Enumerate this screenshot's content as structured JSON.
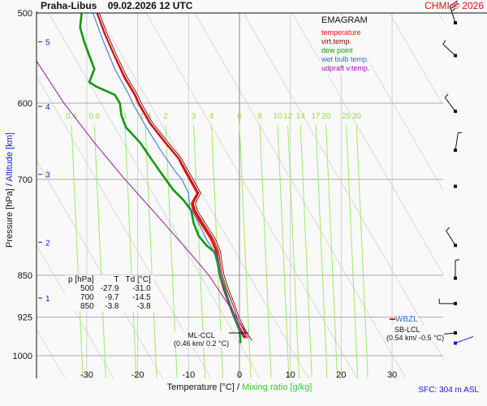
{
  "header": {
    "station": "Praha-Libus",
    "datetime": "09.02.2026 12 UTC",
    "copyright": "CHMI © 2026"
  },
  "legend": {
    "title": "EMAGRAM",
    "items": [
      {
        "label": "temperature",
        "color": "#ee1111"
      },
      {
        "label": "virt.temp.",
        "color": "#8b0000"
      },
      {
        "label": "dew point",
        "color": "#119911"
      },
      {
        "label": "wet bulb temp.",
        "color": "#2a6fdb"
      },
      {
        "label": "udpraft v.temp.",
        "color": "#9911aa"
      }
    ]
  },
  "axes": {
    "y_label_pressure": "Pressure [hPa]",
    "y_label_sep": " / ",
    "y_label_altitude": "Altitude [km]",
    "x_label_temp": "Temperature [°C]",
    "x_label_sep": " / ",
    "x_label_mixing": "Mixing ratio [g/kg]",
    "sfc": "SFC: 304 m ASL"
  },
  "table": {
    "headers": [
      "p [hPa]",
      "T",
      "Td [°C]"
    ],
    "rows": [
      [
        "500",
        "-27.9",
        "-31.0"
      ],
      [
        "700",
        "-9.7",
        "-14.5"
      ],
      [
        "850",
        "-3.8",
        "-3.8"
      ]
    ]
  },
  "annotations": {
    "ml_ccl_label": "ML-CCL",
    "ml_ccl_value": "(0.46 km/ 0.2 °C)",
    "wbzl_label": "WBZL",
    "sb_lcl_label": "SB-LCL",
    "sb_lcl_value": "(0.54 km/ -0.5 °C)"
  },
  "chart_data": {
    "type": "line",
    "title": "Praha-Libus 09.02.2026 12 UTC",
    "chart_kind": "emagram",
    "xlabel": "Temperature [°C] / Mixing ratio [g/kg]",
    "ylabel": "Pressure [hPa] / Altitude [km]",
    "xlim": [
      -40,
      40
    ],
    "ylim": [
      1000,
      500
    ],
    "y_scale": "log",
    "x_ticks": [
      -30,
      -20,
      -10,
      0,
      10,
      20,
      30
    ],
    "y_ticks": [
      500,
      600,
      700,
      850,
      925,
      1000
    ],
    "altitude_ticks": [
      {
        "km": 1,
        "p": 890
      },
      {
        "km": 2,
        "p": 795
      },
      {
        "km": 3,
        "p": 693
      },
      {
        "km": 4,
        "p": 604
      },
      {
        "km": 5,
        "p": 530
      }
    ],
    "mixing_ratio_labels": [
      "0.4",
      "0.6",
      "1",
      "1.4",
      "2",
      "3",
      "4",
      "6",
      "8",
      "10",
      "12",
      "14",
      "17",
      "20",
      "25",
      "30"
    ],
    "mixing_ratio_label_temps_600": [
      -33,
      -28.5,
      -22.5,
      -18.5,
      -14.5,
      -9,
      -5.5,
      0,
      4,
      7.5,
      9.5,
      12,
      15,
      17,
      21,
      23
    ],
    "grid": true,
    "legend_position": "top-right",
    "series": [
      {
        "name": "temperature",
        "color": "#ee1111",
        "points": [
          [
            500,
            -27.9
          ],
          [
            520,
            -26.5
          ],
          [
            545,
            -24.5
          ],
          [
            570,
            -22.5
          ],
          [
            590,
            -20.5
          ],
          [
            600,
            -19.8
          ],
          [
            625,
            -17.5
          ],
          [
            650,
            -14.5
          ],
          [
            670,
            -12
          ],
          [
            690,
            -10.5
          ],
          [
            700,
            -9.7
          ],
          [
            720,
            -8.2
          ],
          [
            735,
            -9.3
          ],
          [
            745,
            -9
          ],
          [
            765,
            -7.5
          ],
          [
            790,
            -5.5
          ],
          [
            810,
            -4.5
          ],
          [
            830,
            -4.2
          ],
          [
            850,
            -3.8
          ],
          [
            875,
            -3
          ],
          [
            900,
            -2
          ],
          [
            925,
            -1
          ],
          [
            950,
            0.2
          ],
          [
            965,
            1.2
          ]
        ]
      },
      {
        "name": "virt.temp.",
        "color": "#8b0000",
        "points": [
          [
            500,
            -27.7
          ],
          [
            520,
            -26.3
          ],
          [
            545,
            -24.3
          ],
          [
            570,
            -22.2
          ],
          [
            590,
            -20.2
          ],
          [
            600,
            -19.5
          ],
          [
            625,
            -17.2
          ],
          [
            650,
            -14.2
          ],
          [
            670,
            -11.7
          ],
          [
            690,
            -10.1
          ],
          [
            700,
            -9.3
          ],
          [
            720,
            -7.8
          ],
          [
            735,
            -8.9
          ],
          [
            745,
            -8.5
          ],
          [
            765,
            -6.9
          ],
          [
            790,
            -4.9
          ],
          [
            810,
            -3.9
          ],
          [
            830,
            -3.6
          ],
          [
            850,
            -3.2
          ],
          [
            875,
            -2.3
          ],
          [
            900,
            -1.2
          ],
          [
            925,
            -0.3
          ],
          [
            950,
            1
          ],
          [
            965,
            1.8
          ]
        ]
      },
      {
        "name": "dew point",
        "color": "#119911",
        "points": [
          [
            500,
            -31
          ],
          [
            515,
            -31.3
          ],
          [
            530,
            -30.5
          ],
          [
            545,
            -29.5
          ],
          [
            560,
            -28.5
          ],
          [
            575,
            -29.5
          ],
          [
            580,
            -28.2
          ],
          [
            590,
            -24.5
          ],
          [
            600,
            -23.5
          ],
          [
            615,
            -23.2
          ],
          [
            630,
            -22.3
          ],
          [
            650,
            -19.5
          ],
          [
            670,
            -17.5
          ],
          [
            690,
            -15.5
          ],
          [
            700,
            -14.5
          ],
          [
            715,
            -13
          ],
          [
            730,
            -11
          ],
          [
            745,
            -9.5
          ],
          [
            765,
            -9
          ],
          [
            785,
            -8
          ],
          [
            800,
            -6.5
          ],
          [
            810,
            -5
          ],
          [
            820,
            -4.5
          ],
          [
            850,
            -3.8
          ],
          [
            870,
            -3
          ],
          [
            900,
            -2
          ],
          [
            925,
            -1
          ],
          [
            950,
            0
          ],
          [
            975,
            0.2
          ]
        ]
      },
      {
        "name": "wet bulb temp.",
        "color": "#2a6fdb",
        "points": [
          [
            500,
            -28.8
          ],
          [
            530,
            -26.7
          ],
          [
            560,
            -24.5
          ],
          [
            590,
            -21.7
          ],
          [
            600,
            -21
          ],
          [
            630,
            -18.3
          ],
          [
            660,
            -15.5
          ],
          [
            690,
            -12.5
          ],
          [
            700,
            -11.3
          ],
          [
            720,
            -10
          ],
          [
            740,
            -9.8
          ],
          [
            765,
            -8
          ],
          [
            790,
            -6.5
          ],
          [
            810,
            -5
          ],
          [
            850,
            -3.8
          ],
          [
            875,
            -3
          ],
          [
            900,
            -2
          ],
          [
            925,
            -1
          ],
          [
            950,
            0
          ],
          [
            965,
            0.8
          ]
        ]
      },
      {
        "name": "udpraft v.temp.",
        "color": "#9911aa",
        "points": [
          [
            500,
            -45
          ],
          [
            550,
            -40
          ],
          [
            600,
            -34.5
          ],
          [
            650,
            -28.5
          ],
          [
            700,
            -22.5
          ],
          [
            750,
            -16.5
          ],
          [
            800,
            -11
          ],
          [
            850,
            -6
          ],
          [
            900,
            -2.3
          ],
          [
            925,
            -0.6
          ],
          [
            950,
            1
          ],
          [
            970,
            2.5
          ]
        ]
      }
    ],
    "wind_barbs": [
      {
        "p": 510,
        "dir_deg": 340,
        "speed_kt": 25
      },
      {
        "p": 545,
        "dir_deg": 310,
        "speed_kt": 5
      },
      {
        "p": 610,
        "dir_deg": 320,
        "speed_kt": 5
      },
      {
        "p": 660,
        "dir_deg": 10,
        "speed_kt": 5
      },
      {
        "p": 710,
        "dir_deg": 315,
        "speed_kt": 0
      },
      {
        "p": 800,
        "dir_deg": 325,
        "speed_kt": 5
      },
      {
        "p": 855,
        "dir_deg": 0,
        "speed_kt": 5
      },
      {
        "p": 900,
        "dir_deg": 270,
        "speed_kt": 5
      },
      {
        "p": 955,
        "dir_deg": 265,
        "speed_kt": 5
      }
    ]
  }
}
